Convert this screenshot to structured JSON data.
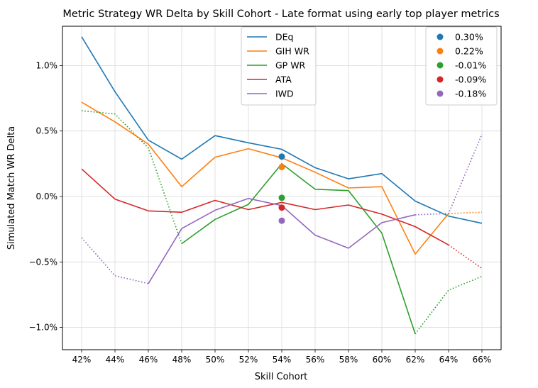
{
  "chart_data": {
    "type": "line",
    "title": "Metric Strategy WR Delta by Skill Cohort - Late format using early top player metrics",
    "xlabel": "Skill Cohort",
    "ylabel": "Simulated Match WR Delta",
    "categories": [
      "42%",
      "44%",
      "46%",
      "48%",
      "50%",
      "52%",
      "54%",
      "56%",
      "58%",
      "60%",
      "62%",
      "64%",
      "66%"
    ],
    "ylim": [
      -1.17,
      1.3
    ],
    "yticks": [
      -1.0,
      -0.5,
      0.0,
      0.5,
      1.0
    ],
    "ytick_labels": [
      "−1.0%",
      "−0.5%",
      "0.0%",
      "0.5%",
      "1.0%"
    ],
    "grid": true,
    "series": [
      {
        "name": "DEq",
        "color": "#1f77b4",
        "values": [
          1.22,
          0.8,
          0.43,
          0.285,
          0.465,
          0.41,
          0.36,
          0.22,
          0.135,
          0.175,
          -0.035,
          -0.15,
          -0.205
        ],
        "solid_range": [
          0,
          12
        ]
      },
      {
        "name": "GIH WR",
        "color": "#ff7f0e",
        "values": [
          0.72,
          0.57,
          0.4,
          0.075,
          0.3,
          0.365,
          0.295,
          0.185,
          0.065,
          0.075,
          -0.44,
          -0.13,
          -0.12
        ],
        "solid_range": [
          0,
          11
        ]
      },
      {
        "name": "GP WR",
        "color": "#2ca02c",
        "values": [
          0.655,
          0.63,
          0.37,
          -0.36,
          -0.175,
          -0.06,
          0.25,
          0.055,
          0.045,
          -0.28,
          -1.05,
          -0.715,
          -0.61
        ],
        "solid_range": [
          3,
          10
        ]
      },
      {
        "name": "ATA",
        "color": "#d62728",
        "values": [
          0.21,
          -0.02,
          -0.11,
          -0.12,
          -0.03,
          -0.1,
          -0.045,
          -0.1,
          -0.065,
          -0.135,
          -0.23,
          -0.37,
          -0.55
        ],
        "solid_range": [
          0,
          11
        ]
      },
      {
        "name": "IWD",
        "color": "#9467bd",
        "values": [
          -0.315,
          -0.605,
          -0.665,
          -0.245,
          -0.105,
          -0.015,
          -0.07,
          -0.295,
          -0.395,
          -0.2,
          -0.14,
          -0.13,
          0.475
        ],
        "solid_range": [
          2,
          10
        ]
      }
    ],
    "points": [
      {
        "label": "0.30%",
        "value": 0.305,
        "category": "54%",
        "color": "#1f77b4"
      },
      {
        "label": "0.22%",
        "value": 0.225,
        "category": "54%",
        "color": "#ff7f0e"
      },
      {
        "label": "-0.01%",
        "value": -0.01,
        "category": "54%",
        "color": "#2ca02c"
      },
      {
        "label": "-0.09%",
        "value": -0.085,
        "category": "54%",
        "color": "#d62728"
      },
      {
        "label": "-0.18%",
        "value": -0.185,
        "category": "54%",
        "color": "#9467bd"
      }
    ],
    "legend_lines_position": "top-center",
    "legend_points_position": "top-right"
  }
}
